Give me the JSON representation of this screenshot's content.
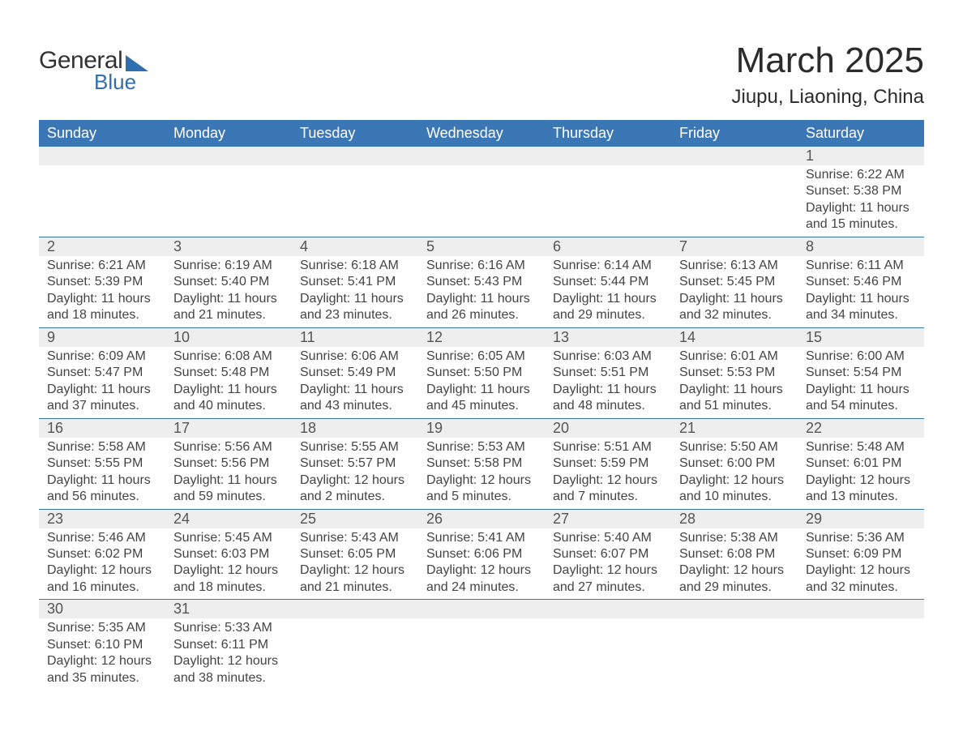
{
  "logo": {
    "text1": "General",
    "text2": "Blue"
  },
  "title": "March 2025",
  "location": "Jiupu, Liaoning, China",
  "colors": {
    "header_bg": "#3b76b5",
    "header_text": "#ffffff",
    "daynum_bg": "#eeeeee",
    "row_border": "#3b76b5",
    "body_text": "#444444",
    "daynum_text": "#555555",
    "logo_blue": "#2f6fae",
    "background": "#ffffff"
  },
  "typography": {
    "title_fontsize": 44,
    "location_fontsize": 24,
    "weekday_fontsize": 18,
    "daynum_fontsize": 18,
    "body_fontsize": 16
  },
  "weekdays": [
    "Sunday",
    "Monday",
    "Tuesday",
    "Wednesday",
    "Thursday",
    "Friday",
    "Saturday"
  ],
  "weeks": [
    [
      null,
      null,
      null,
      null,
      null,
      null,
      {
        "n": "1",
        "sr": "Sunrise: 6:22 AM",
        "ss": "Sunset: 5:38 PM",
        "d1": "Daylight: 11 hours",
        "d2": "and 15 minutes."
      }
    ],
    [
      {
        "n": "2",
        "sr": "Sunrise: 6:21 AM",
        "ss": "Sunset: 5:39 PM",
        "d1": "Daylight: 11 hours",
        "d2": "and 18 minutes."
      },
      {
        "n": "3",
        "sr": "Sunrise: 6:19 AM",
        "ss": "Sunset: 5:40 PM",
        "d1": "Daylight: 11 hours",
        "d2": "and 21 minutes."
      },
      {
        "n": "4",
        "sr": "Sunrise: 6:18 AM",
        "ss": "Sunset: 5:41 PM",
        "d1": "Daylight: 11 hours",
        "d2": "and 23 minutes."
      },
      {
        "n": "5",
        "sr": "Sunrise: 6:16 AM",
        "ss": "Sunset: 5:43 PM",
        "d1": "Daylight: 11 hours",
        "d2": "and 26 minutes."
      },
      {
        "n": "6",
        "sr": "Sunrise: 6:14 AM",
        "ss": "Sunset: 5:44 PM",
        "d1": "Daylight: 11 hours",
        "d2": "and 29 minutes."
      },
      {
        "n": "7",
        "sr": "Sunrise: 6:13 AM",
        "ss": "Sunset: 5:45 PM",
        "d1": "Daylight: 11 hours",
        "d2": "and 32 minutes."
      },
      {
        "n": "8",
        "sr": "Sunrise: 6:11 AM",
        "ss": "Sunset: 5:46 PM",
        "d1": "Daylight: 11 hours",
        "d2": "and 34 minutes."
      }
    ],
    [
      {
        "n": "9",
        "sr": "Sunrise: 6:09 AM",
        "ss": "Sunset: 5:47 PM",
        "d1": "Daylight: 11 hours",
        "d2": "and 37 minutes."
      },
      {
        "n": "10",
        "sr": "Sunrise: 6:08 AM",
        "ss": "Sunset: 5:48 PM",
        "d1": "Daylight: 11 hours",
        "d2": "and 40 minutes."
      },
      {
        "n": "11",
        "sr": "Sunrise: 6:06 AM",
        "ss": "Sunset: 5:49 PM",
        "d1": "Daylight: 11 hours",
        "d2": "and 43 minutes."
      },
      {
        "n": "12",
        "sr": "Sunrise: 6:05 AM",
        "ss": "Sunset: 5:50 PM",
        "d1": "Daylight: 11 hours",
        "d2": "and 45 minutes."
      },
      {
        "n": "13",
        "sr": "Sunrise: 6:03 AM",
        "ss": "Sunset: 5:51 PM",
        "d1": "Daylight: 11 hours",
        "d2": "and 48 minutes."
      },
      {
        "n": "14",
        "sr": "Sunrise: 6:01 AM",
        "ss": "Sunset: 5:53 PM",
        "d1": "Daylight: 11 hours",
        "d2": "and 51 minutes."
      },
      {
        "n": "15",
        "sr": "Sunrise: 6:00 AM",
        "ss": "Sunset: 5:54 PM",
        "d1": "Daylight: 11 hours",
        "d2": "and 54 minutes."
      }
    ],
    [
      {
        "n": "16",
        "sr": "Sunrise: 5:58 AM",
        "ss": "Sunset: 5:55 PM",
        "d1": "Daylight: 11 hours",
        "d2": "and 56 minutes."
      },
      {
        "n": "17",
        "sr": "Sunrise: 5:56 AM",
        "ss": "Sunset: 5:56 PM",
        "d1": "Daylight: 11 hours",
        "d2": "and 59 minutes."
      },
      {
        "n": "18",
        "sr": "Sunrise: 5:55 AM",
        "ss": "Sunset: 5:57 PM",
        "d1": "Daylight: 12 hours",
        "d2": "and 2 minutes."
      },
      {
        "n": "19",
        "sr": "Sunrise: 5:53 AM",
        "ss": "Sunset: 5:58 PM",
        "d1": "Daylight: 12 hours",
        "d2": "and 5 minutes."
      },
      {
        "n": "20",
        "sr": "Sunrise: 5:51 AM",
        "ss": "Sunset: 5:59 PM",
        "d1": "Daylight: 12 hours",
        "d2": "and 7 minutes."
      },
      {
        "n": "21",
        "sr": "Sunrise: 5:50 AM",
        "ss": "Sunset: 6:00 PM",
        "d1": "Daylight: 12 hours",
        "d2": "and 10 minutes."
      },
      {
        "n": "22",
        "sr": "Sunrise: 5:48 AM",
        "ss": "Sunset: 6:01 PM",
        "d1": "Daylight: 12 hours",
        "d2": "and 13 minutes."
      }
    ],
    [
      {
        "n": "23",
        "sr": "Sunrise: 5:46 AM",
        "ss": "Sunset: 6:02 PM",
        "d1": "Daylight: 12 hours",
        "d2": "and 16 minutes."
      },
      {
        "n": "24",
        "sr": "Sunrise: 5:45 AM",
        "ss": "Sunset: 6:03 PM",
        "d1": "Daylight: 12 hours",
        "d2": "and 18 minutes."
      },
      {
        "n": "25",
        "sr": "Sunrise: 5:43 AM",
        "ss": "Sunset: 6:05 PM",
        "d1": "Daylight: 12 hours",
        "d2": "and 21 minutes."
      },
      {
        "n": "26",
        "sr": "Sunrise: 5:41 AM",
        "ss": "Sunset: 6:06 PM",
        "d1": "Daylight: 12 hours",
        "d2": "and 24 minutes."
      },
      {
        "n": "27",
        "sr": "Sunrise: 5:40 AM",
        "ss": "Sunset: 6:07 PM",
        "d1": "Daylight: 12 hours",
        "d2": "and 27 minutes."
      },
      {
        "n": "28",
        "sr": "Sunrise: 5:38 AM",
        "ss": "Sunset: 6:08 PM",
        "d1": "Daylight: 12 hours",
        "d2": "and 29 minutes."
      },
      {
        "n": "29",
        "sr": "Sunrise: 5:36 AM",
        "ss": "Sunset: 6:09 PM",
        "d1": "Daylight: 12 hours",
        "d2": "and 32 minutes."
      }
    ],
    [
      {
        "n": "30",
        "sr": "Sunrise: 5:35 AM",
        "ss": "Sunset: 6:10 PM",
        "d1": "Daylight: 12 hours",
        "d2": "and 35 minutes."
      },
      {
        "n": "31",
        "sr": "Sunrise: 5:33 AM",
        "ss": "Sunset: 6:11 PM",
        "d1": "Daylight: 12 hours",
        "d2": "and 38 minutes."
      },
      null,
      null,
      null,
      null,
      null
    ]
  ]
}
